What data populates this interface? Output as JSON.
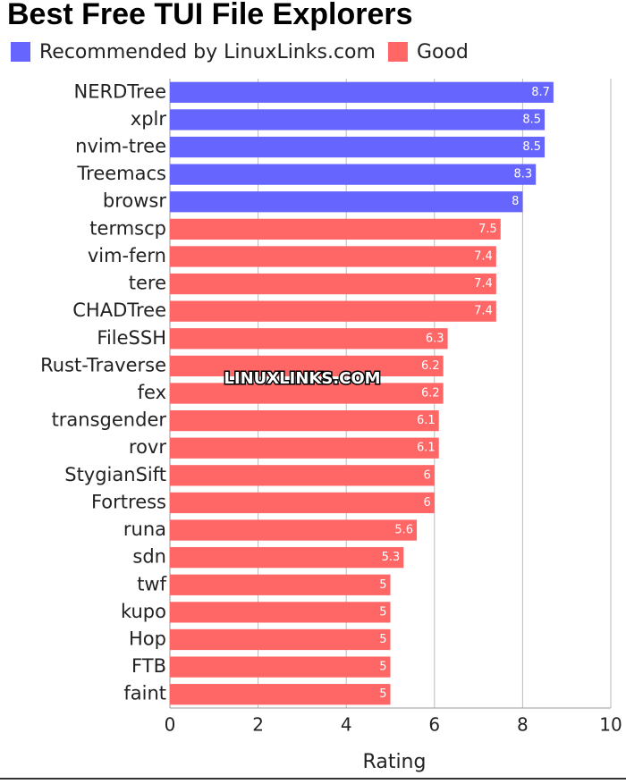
{
  "chart_data": {
    "type": "hbar",
    "title": "Best Free TUI File Explorers",
    "x_label": "Rating",
    "watermark": "LINUXLINKS.COM",
    "categories": [
      "NERDTree",
      "xplr",
      "nvim-tree",
      "Treemacs",
      "browsr",
      "termscp",
      "vim-fern",
      "tere",
      "CHADTree",
      "FileSSH",
      "Rust-Traverse",
      "fex",
      "transgender",
      "rovr",
      "StygianSift",
      "Fortress",
      "runa",
      "sdn",
      "twf",
      "kupo",
      "Hop",
      "FTB",
      "faint"
    ],
    "series": [
      {
        "name": "Recommended by LinuxLinks.com",
        "color": "#6666ff",
        "values": [
          8.7,
          8.5,
          8.5,
          8.3,
          8,
          null,
          null,
          null,
          null,
          null,
          null,
          null,
          null,
          null,
          null,
          null,
          null,
          null,
          null,
          null,
          null,
          null,
          null
        ]
      },
      {
        "name": "Good",
        "color": "#ff6666",
        "values": [
          null,
          null,
          null,
          null,
          null,
          7.5,
          7.4,
          7.4,
          7.4,
          6.3,
          6.2,
          6.2,
          6.1,
          6.1,
          6,
          6,
          5.6,
          5.3,
          5,
          5,
          5,
          5,
          5
        ]
      }
    ],
    "xlim": [
      0,
      10
    ],
    "xticks": [
      0,
      2,
      4,
      6,
      8,
      10
    ],
    "grid": true
  }
}
